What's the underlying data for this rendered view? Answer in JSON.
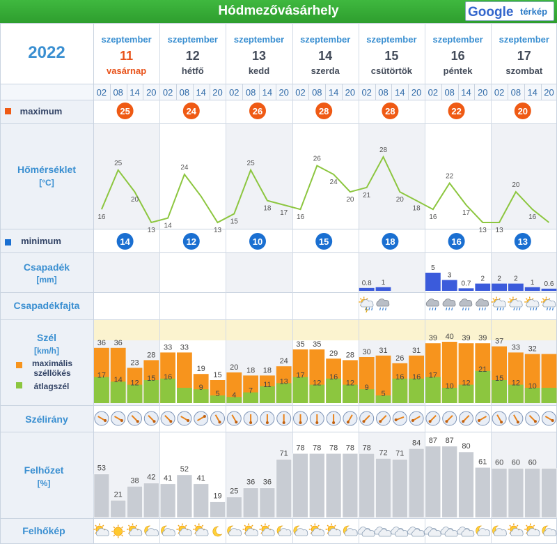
{
  "title": "Hódmezővásárhely",
  "map_link": {
    "brand": "Google",
    "suffix": "térkép"
  },
  "year": "2022",
  "days": [
    {
      "month": "szeptember",
      "day": "11",
      "weekday": "vasárnap",
      "highlight": true
    },
    {
      "month": "szeptember",
      "day": "12",
      "weekday": "hétfő",
      "highlight": false
    },
    {
      "month": "szeptember",
      "day": "13",
      "weekday": "kedd",
      "highlight": false
    },
    {
      "month": "szeptember",
      "day": "14",
      "weekday": "szerda",
      "highlight": false
    },
    {
      "month": "szeptember",
      "day": "15",
      "weekday": "csütörtök",
      "highlight": false
    },
    {
      "month": "szeptember",
      "day": "16",
      "weekday": "péntek",
      "highlight": false
    },
    {
      "month": "szeptember",
      "day": "17",
      "weekday": "szombat",
      "highlight": false
    }
  ],
  "hours": [
    "02",
    "08",
    "14",
    "20"
  ],
  "labels": {
    "maximum": "maximum",
    "temperature": "Hőmérséklet",
    "temperature_unit": "[°C]",
    "minimum": "minimum",
    "precip": "Csapadék",
    "precip_unit": "[mm]",
    "precip_type": "Csapadékfajta",
    "wind": "Szél",
    "wind_unit": "[km/h]",
    "wind_gust": "maximális széllökés",
    "wind_avg": "átlagszél",
    "wind_dir": "Szélirány",
    "cloud": "Felhőzet",
    "cloud_unit": "[%]",
    "cloud_image": "Felhőkép"
  },
  "colors": {
    "header": "#2e9e2e",
    "max_badge": "#ef5a14",
    "min_badge": "#1a6fd1",
    "label": "#3a8fd1",
    "temp_line": "#8cc63f",
    "precip_bar": "#3b5bdb",
    "gust_bar": "#f7941d",
    "avg_bar": "#8cc63f",
    "cloud_bar": "#c8ccd3",
    "highlight_day": "#e8521a"
  },
  "daily_max": [
    25,
    24,
    26,
    28,
    28,
    22,
    20
  ],
  "daily_min": [
    14,
    12,
    10,
    15,
    18,
    16,
    13
  ],
  "chart_data": {
    "type": "line",
    "x": [
      "11 02",
      "11 08",
      "11 14",
      "11 20",
      "12 02",
      "12 08",
      "12 14",
      "12 20",
      "13 02",
      "13 08",
      "13 14",
      "13 20",
      "14 02",
      "14 08",
      "14 14",
      "14 20",
      "15 02",
      "15 08",
      "15 14",
      "15 20",
      "16 02",
      "16 08",
      "16 14",
      "16 20",
      "17 02",
      "17 08",
      "17 14",
      "17 20"
    ],
    "temperature": [
      16,
      25,
      20,
      13,
      14,
      24,
      19,
      13,
      15,
      25,
      18,
      17,
      16,
      26,
      24,
      20,
      21,
      28,
      20,
      18,
      16,
      22,
      17,
      13,
      13,
      20,
      16,
      13
    ],
    "temperature_labels": [
      "16",
      "25",
      "20",
      "13",
      "14",
      "24",
      "",
      "13",
      "15",
      "25",
      "18",
      "17",
      "16",
      "26",
      "24",
      "20",
      "21",
      "28",
      "20",
      "18",
      "16",
      "22",
      "17",
      "13",
      "13",
      "20",
      "16",
      ""
    ],
    "precip": [
      null,
      null,
      null,
      null,
      null,
      null,
      null,
      null,
      null,
      null,
      null,
      null,
      null,
      null,
      null,
      null,
      0.8,
      1,
      null,
      null,
      5,
      3,
      0.7,
      2,
      2,
      2,
      1,
      0.6
    ],
    "precip_labels": [
      "",
      "",
      "",
      "",
      "",
      "",
      "",
      "",
      "",
      "",
      "",
      "",
      "",
      "",
      "",
      "",
      "0.8",
      "1",
      "",
      "",
      "5",
      "3",
      "0.7",
      "2",
      "2",
      "2",
      "1",
      "0.6"
    ],
    "precip_icons": [
      null,
      null,
      null,
      null,
      null,
      null,
      null,
      null,
      null,
      null,
      null,
      null,
      null,
      null,
      null,
      null,
      "storm",
      "rain",
      null,
      null,
      "rain",
      "rain",
      "rain",
      "rain",
      "sun-rain",
      "sun-rain",
      "sun-rain",
      "sun-rain"
    ],
    "wind_gust": [
      36,
      36,
      23,
      28,
      33,
      33,
      19,
      15,
      20,
      18,
      18,
      24,
      35,
      35,
      29,
      28,
      30,
      31,
      26,
      31,
      39,
      40,
      39,
      39,
      37,
      33,
      32,
      32
    ],
    "wind_gust_labels": [
      "36",
      "36",
      "23",
      "28",
      "33",
      "33",
      "19",
      "15",
      "20",
      "18",
      "18",
      "24",
      "35",
      "35",
      "29",
      "28",
      "30",
      "31",
      "26",
      "31",
      "39",
      "40",
      "39",
      "39",
      "37",
      "33",
      "32",
      ""
    ],
    "wind_avg": [
      17,
      14,
      12,
      15,
      16,
      10,
      9,
      5,
      4,
      7,
      11,
      13,
      17,
      12,
      16,
      12,
      9,
      5,
      16,
      16,
      17,
      10,
      12,
      21,
      15,
      12,
      10,
      10
    ],
    "wind_avg_labels": [
      "17",
      "14",
      "12",
      "15",
      "16",
      "",
      "9",
      "5",
      "4",
      "7",
      "11",
      "13",
      "17",
      "12",
      "16",
      "12",
      "9",
      "5",
      "16",
      "16",
      "17",
      "10",
      "12",
      "21",
      "15",
      "12",
      "10",
      ""
    ],
    "wind_dir": [
      120,
      120,
      135,
      135,
      135,
      120,
      60,
      150,
      150,
      180,
      180,
      180,
      180,
      180,
      180,
      210,
      225,
      225,
      250,
      240,
      225,
      225,
      225,
      240,
      150,
      150,
      135,
      120
    ],
    "cloud": [
      53,
      21,
      38,
      42,
      41,
      52,
      41,
      19,
      25,
      36,
      36,
      71,
      78,
      78,
      78,
      78,
      78,
      72,
      71,
      84,
      87,
      87,
      80,
      61,
      60,
      60,
      60,
      60
    ],
    "cloud_labels": [
      "53",
      "21",
      "38",
      "42",
      "41",
      "52",
      "41",
      "19",
      "25",
      "36",
      "36",
      "71",
      "78",
      "78",
      "78",
      "78",
      "78",
      "72",
      "71",
      "84",
      "87",
      "87",
      "80",
      "61",
      "60",
      "60",
      "60",
      ""
    ],
    "cloud_icons": [
      "sun-cloud",
      "sun",
      "sun-cloud",
      "moon-cloud",
      "moon-cloud",
      "sun-cloud",
      "sun-cloud",
      "moon",
      "moon-cloud",
      "sun-cloud",
      "sun-cloud",
      "moon-cloud",
      "moon-cloud",
      "sun-cloud",
      "sun-cloud",
      "moon-cloud",
      "cloud",
      "cloud",
      "cloud",
      "cloud",
      "cloud",
      "cloud",
      "cloud",
      "moon-cloud",
      "moon-cloud",
      "sun-cloud",
      "sun-cloud",
      "moon-cloud"
    ]
  }
}
